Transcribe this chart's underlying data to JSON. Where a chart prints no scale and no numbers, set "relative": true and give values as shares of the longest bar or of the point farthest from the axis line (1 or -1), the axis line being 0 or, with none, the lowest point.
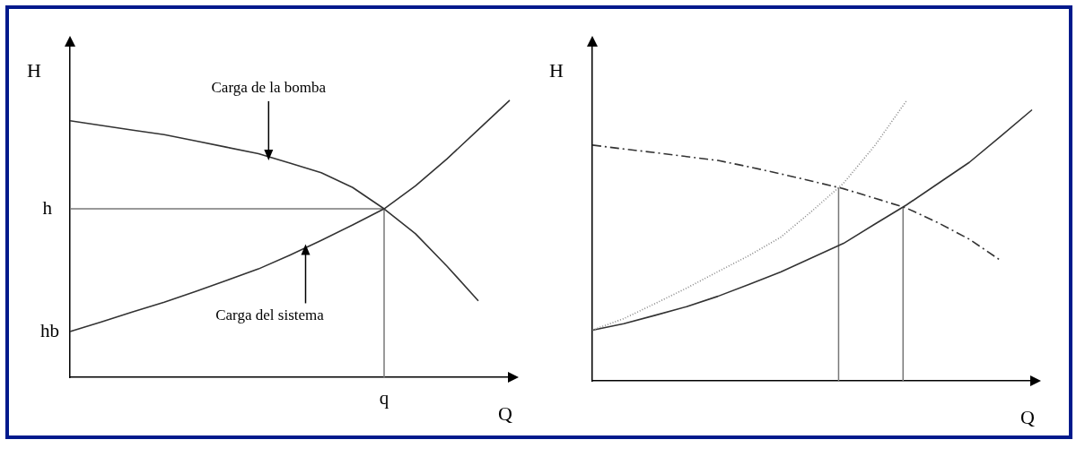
{
  "chart_data": [
    {
      "type": "line",
      "xlabel": "Q",
      "ylabel": "H",
      "relative": true,
      "tick_labels": "x",
      "categories": [
        null,
        null,
        null,
        null,
        null,
        null,
        null,
        null,
        null,
        null,
        null,
        null,
        null,
        null,
        null
      ],
      "grid": false,
      "legend": false,
      "marker": "none",
      "series": [
        {
          "color": "#333333",
          "values": [
            0.926,
            0.909,
            0.892,
            0.876,
            0.853,
            0.83,
            0.807,
            0.773,
            0.738,
            0.685,
            0.608,
            0.518,
            0.401,
            0.276,
            null
          ]
        },
        {
          "color": "#333333",
          "values": [
            0.165,
            0.2,
            0.236,
            0.271,
            0.31,
            0.35,
            0.391,
            0.441,
            0.494,
            0.55,
            0.608,
            0.691,
            0.788,
            0.894,
            1.0
          ]
        }
      ],
      "ref_lines": [
        {
          "axis": "y",
          "value": 0.608,
          "label": "h",
          "color": "#777777"
        }
      ],
      "annotations": [
        "q",
        "hb",
        {
          "text": "Carga de la bomba",
          "y": 0.796
        },
        "Carga del sistema"
      ]
    },
    {
      "type": "line",
      "xlabel": "Q",
      "ylabel": "H",
      "relative": true,
      "tick_labels": false,
      "categories": [
        null,
        null,
        null,
        null,
        null,
        null,
        null,
        null,
        null,
        null,
        null,
        null,
        null,
        null,
        null
      ],
      "grid": false,
      "legend": false,
      "marker": "none",
      "series": [
        {
          "color": "#333333",
          "line_style": "dashed",
          "values": [
            0.842,
            0.828,
            0.815,
            0.801,
            0.787,
            0.764,
            0.739,
            0.713,
            0.686,
            0.652,
            0.617,
            0.565,
            0.506,
            0.43,
            null
          ]
        },
        {
          "color": "#888888",
          "line_style": "dotted",
          "values": [
            0.181,
            0.222,
            0.276,
            0.331,
            0.39,
            0.448,
            0.513,
            0.607,
            0.706,
            0.841,
            1.0,
            null,
            null,
            null,
            null
          ]
        },
        {
          "color": "#333333",
          "values": [
            0.181,
            0.204,
            0.234,
            0.265,
            0.302,
            0.345,
            0.389,
            0.44,
            0.491,
            0.56,
            0.628,
            0.704,
            0.78,
            0.873,
            0.968
          ]
        }
      ]
    }
  ]
}
